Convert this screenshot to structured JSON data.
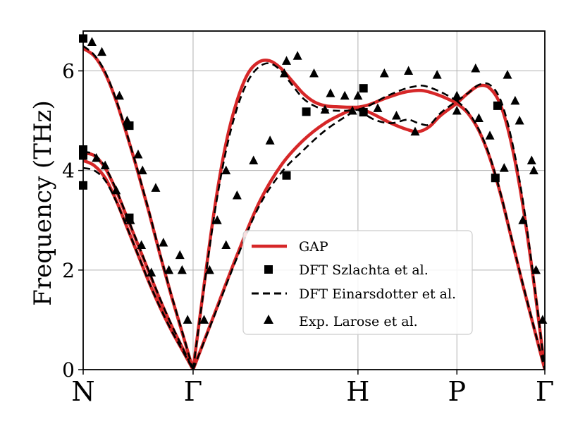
{
  "chart_data": {
    "type": "line",
    "title": "",
    "xlabel": "",
    "ylabel": "Frequency (THz)",
    "ylim": [
      0,
      6.8
    ],
    "y_ticks": [
      "0",
      "2",
      "4",
      "6"
    ],
    "x_ticks": [
      "N",
      "Γ",
      "H",
      "P",
      "Γ"
    ],
    "x_tick_positions": [
      0,
      1,
      2.5,
      3.4,
      4.2
    ],
    "grid": true,
    "legend": {
      "placement": "center-right",
      "entries": [
        {
          "label": "GAP",
          "style": "solid-red-line"
        },
        {
          "label": "DFT Szlachta et al.",
          "style": "square-marker"
        },
        {
          "label": "DFT Einarsdotter et al.",
          "style": "dashed-black-line"
        },
        {
          "label": "Exp. Larose et al.",
          "style": "triangle-marker"
        }
      ]
    },
    "colors": {
      "gap": "#d62728",
      "dft": "#000000",
      "grid": "#b0b0b0"
    },
    "series": [
      {
        "name": "GAP",
        "branches": [
          [
            [
              0,
              6.45
            ],
            [
              0.1,
              6.3
            ],
            [
              0.2,
              5.95
            ],
            [
              0.3,
              5.4
            ],
            [
              0.4,
              4.7
            ],
            [
              0.5,
              3.95
            ],
            [
              0.6,
              3.15
            ],
            [
              0.7,
              2.3
            ],
            [
              0.8,
              1.5
            ],
            [
              0.9,
              0.75
            ],
            [
              1,
              0
            ]
          ],
          [
            [
              0,
              4.35
            ],
            [
              0.1,
              4.3
            ],
            [
              0.2,
              4.05
            ],
            [
              0.3,
              3.6
            ],
            [
              0.4,
              3.05
            ],
            [
              0.5,
              2.5
            ],
            [
              0.6,
              1.95
            ],
            [
              0.7,
              1.4
            ],
            [
              0.8,
              0.9
            ],
            [
              0.9,
              0.45
            ],
            [
              1,
              0
            ]
          ],
          [
            [
              0,
              4.2
            ],
            [
              0.1,
              4.1
            ],
            [
              0.2,
              3.85
            ],
            [
              0.3,
              3.4
            ],
            [
              0.4,
              2.85
            ],
            [
              0.5,
              2.3
            ],
            [
              0.6,
              1.75
            ],
            [
              0.7,
              1.25
            ],
            [
              0.8,
              0.8
            ],
            [
              0.9,
              0.4
            ],
            [
              1,
              0
            ]
          ],
          [
            [
              1,
              0
            ],
            [
              1.1,
              1.7
            ],
            [
              1.2,
              3.3
            ],
            [
              1.3,
              4.55
            ],
            [
              1.4,
              5.4
            ],
            [
              1.5,
              5.95
            ],
            [
              1.6,
              6.18
            ],
            [
              1.7,
              6.2
            ],
            [
              1.8,
              6.05
            ],
            [
              1.9,
              5.8
            ],
            [
              2,
              5.55
            ],
            [
              2.1,
              5.38
            ],
            [
              2.2,
              5.3
            ],
            [
              2.3,
              5.28
            ],
            [
              2.4,
              5.27
            ],
            [
              2.5,
              5.27
            ]
          ],
          [
            [
              1,
              0
            ],
            [
              1.2,
              1.15
            ],
            [
              1.4,
              2.3
            ],
            [
              1.6,
              3.35
            ],
            [
              1.8,
              4.1
            ],
            [
              2,
              4.6
            ],
            [
              2.2,
              4.95
            ],
            [
              2.4,
              5.18
            ],
            [
              2.5,
              5.27
            ]
          ],
          [
            [
              2.5,
              5.27
            ],
            [
              2.6,
              5.32
            ],
            [
              2.75,
              5.45
            ],
            [
              2.9,
              5.56
            ],
            [
              3.0,
              5.6
            ],
            [
              3.1,
              5.6
            ],
            [
              3.25,
              5.5
            ],
            [
              3.4,
              5.35
            ]
          ],
          [
            [
              2.5,
              5.27
            ],
            [
              2.65,
              5.12
            ],
            [
              2.8,
              4.95
            ],
            [
              2.95,
              4.82
            ],
            [
              3.05,
              4.78
            ],
            [
              3.15,
              4.88
            ],
            [
              3.25,
              5.1
            ],
            [
              3.4,
              5.35
            ]
          ],
          [
            [
              3.4,
              5.35
            ],
            [
              3.5,
              5.55
            ],
            [
              3.6,
              5.7
            ],
            [
              3.7,
              5.65
            ],
            [
              3.8,
              5.3
            ],
            [
              3.9,
              4.5
            ],
            [
              4.0,
              3.3
            ],
            [
              4.1,
              1.75
            ],
            [
              4.2,
              0
            ]
          ],
          [
            [
              3.4,
              5.35
            ],
            [
              3.5,
              5.15
            ],
            [
              3.6,
              4.8
            ],
            [
              3.7,
              4.25
            ],
            [
              3.8,
              3.5
            ],
            [
              3.9,
              2.6
            ],
            [
              4.0,
              1.7
            ],
            [
              4.1,
              0.85
            ],
            [
              4.2,
              0
            ]
          ]
        ]
      },
      {
        "name": "DFT Einarsdotter et al.",
        "branches": [
          [
            [
              0,
              6.5
            ],
            [
              0.1,
              6.32
            ],
            [
              0.2,
              5.98
            ],
            [
              0.3,
              5.42
            ],
            [
              0.4,
              4.72
            ],
            [
              0.5,
              3.97
            ],
            [
              0.6,
              3.17
            ],
            [
              0.7,
              2.32
            ],
            [
              0.8,
              1.52
            ],
            [
              0.9,
              0.77
            ],
            [
              1,
              0
            ]
          ],
          [
            [
              0,
              4.38
            ],
            [
              0.1,
              4.32
            ],
            [
              0.2,
              4.07
            ],
            [
              0.3,
              3.62
            ],
            [
              0.4,
              3.07
            ],
            [
              0.5,
              2.52
            ],
            [
              0.6,
              1.97
            ],
            [
              0.7,
              1.42
            ],
            [
              0.8,
              0.92
            ],
            [
              0.9,
              0.46
            ],
            [
              1,
              0
            ]
          ],
          [
            [
              0,
              4.05
            ],
            [
              0.1,
              4.0
            ],
            [
              0.2,
              3.8
            ],
            [
              0.3,
              3.38
            ],
            [
              0.4,
              2.85
            ],
            [
              0.5,
              2.3
            ],
            [
              0.6,
              1.75
            ],
            [
              0.7,
              1.25
            ],
            [
              0.8,
              0.8
            ],
            [
              0.9,
              0.4
            ],
            [
              1,
              0
            ]
          ],
          [
            [
              1,
              0
            ],
            [
              1.1,
              1.65
            ],
            [
              1.2,
              3.2
            ],
            [
              1.3,
              4.4
            ],
            [
              1.4,
              5.25
            ],
            [
              1.5,
              5.8
            ],
            [
              1.6,
              6.08
            ],
            [
              1.7,
              6.15
            ],
            [
              1.8,
              6.0
            ],
            [
              1.9,
              5.72
            ],
            [
              2,
              5.45
            ],
            [
              2.1,
              5.3
            ],
            [
              2.2,
              5.22
            ],
            [
              2.3,
              5.2
            ],
            [
              2.4,
              5.2
            ],
            [
              2.5,
              5.22
            ]
          ],
          [
            [
              1,
              0
            ],
            [
              1.2,
              1.12
            ],
            [
              1.4,
              2.25
            ],
            [
              1.6,
              3.28
            ],
            [
              1.8,
              3.95
            ],
            [
              2,
              4.4
            ],
            [
              2.2,
              4.8
            ],
            [
              2.4,
              5.1
            ],
            [
              2.5,
              5.22
            ]
          ],
          [
            [
              2.5,
              5.22
            ],
            [
              2.6,
              5.3
            ],
            [
              2.75,
              5.48
            ],
            [
              2.9,
              5.62
            ],
            [
              3.0,
              5.68
            ],
            [
              3.1,
              5.7
            ],
            [
              3.25,
              5.58
            ],
            [
              3.4,
              5.4
            ]
          ],
          [
            [
              2.5,
              5.22
            ],
            [
              2.65,
              5.02
            ],
            [
              2.8,
              4.95
            ],
            [
              2.95,
              5.02
            ],
            [
              3.05,
              4.95
            ],
            [
              3.15,
              4.92
            ],
            [
              3.25,
              5.15
            ],
            [
              3.4,
              5.4
            ]
          ],
          [
            [
              3.4,
              5.4
            ],
            [
              3.5,
              5.55
            ],
            [
              3.6,
              5.72
            ],
            [
              3.7,
              5.72
            ],
            [
              3.8,
              5.4
            ],
            [
              3.9,
              4.6
            ],
            [
              4.0,
              3.4
            ],
            [
              4.1,
              1.8
            ],
            [
              4.2,
              0
            ]
          ],
          [
            [
              3.4,
              5.4
            ],
            [
              3.5,
              5.18
            ],
            [
              3.6,
              4.82
            ],
            [
              3.7,
              4.28
            ],
            [
              3.8,
              3.52
            ],
            [
              3.9,
              2.62
            ],
            [
              4.0,
              1.72
            ],
            [
              4.1,
              0.86
            ],
            [
              4.2,
              0
            ]
          ]
        ]
      },
      {
        "name": "DFT Szlachta et al.",
        "points": [
          [
            0,
            6.65
          ],
          [
            0,
            4.42
          ],
          [
            0,
            4.3
          ],
          [
            0,
            3.7
          ],
          [
            0.42,
            3.05
          ],
          [
            0.42,
            4.9
          ],
          [
            1.85,
            3.9
          ],
          [
            2.03,
            5.18
          ],
          [
            2.55,
            5.65
          ],
          [
            2.55,
            5.17
          ],
          [
            3.75,
            3.85
          ],
          [
            3.77,
            5.3
          ]
        ]
      },
      {
        "name": "Exp. Larose et al.",
        "points": [
          [
            0.08,
            6.58
          ],
          [
            0.17,
            6.38
          ],
          [
            0.33,
            5.5
          ],
          [
            0.4,
            5.0
          ],
          [
            0.5,
            4.32
          ],
          [
            0.54,
            4.0
          ],
          [
            0.66,
            3.65
          ],
          [
            0.88,
            2.3
          ],
          [
            0.73,
            2.55
          ],
          [
            0.78,
            2.0
          ],
          [
            0.9,
            2.0
          ],
          [
            0.95,
            1.0
          ],
          [
            0.12,
            4.25
          ],
          [
            0.2,
            4.1
          ],
          [
            0.3,
            3.6
          ],
          [
            0.43,
            3.0
          ],
          [
            0.53,
            2.5
          ],
          [
            0.62,
            1.95
          ],
          [
            1.1,
            1.0
          ],
          [
            1.15,
            2.0
          ],
          [
            1.22,
            3.0
          ],
          [
            1.3,
            4.0
          ],
          [
            1.3,
            2.5
          ],
          [
            1.4,
            3.5
          ],
          [
            1.55,
            4.2
          ],
          [
            1.7,
            4.6
          ],
          [
            1.85,
            6.2
          ],
          [
            1.83,
            5.95
          ],
          [
            1.95,
            6.3
          ],
          [
            2.1,
            5.95
          ],
          [
            2.2,
            5.22
          ],
          [
            2.25,
            5.55
          ],
          [
            2.38,
            5.5
          ],
          [
            2.5,
            5.5
          ],
          [
            2.45,
            5.2
          ],
          [
            2.68,
            5.25
          ],
          [
            2.74,
            5.95
          ],
          [
            2.85,
            5.1
          ],
          [
            2.96,
            6.0
          ],
          [
            3.02,
            4.78
          ],
          [
            3.22,
            5.92
          ],
          [
            3.4,
            5.2
          ],
          [
            3.4,
            5.5
          ],
          [
            3.57,
            6.05
          ],
          [
            3.6,
            5.05
          ],
          [
            3.7,
            4.7
          ],
          [
            3.83,
            4.05
          ],
          [
            3.86,
            5.92
          ],
          [
            3.93,
            5.4
          ],
          [
            3.97,
            5.0
          ],
          [
            4.0,
            3.0
          ],
          [
            4.08,
            4.2
          ],
          [
            4.1,
            4.0
          ],
          [
            4.12,
            2.0
          ],
          [
            4.18,
            1.0
          ]
        ]
      }
    ]
  }
}
